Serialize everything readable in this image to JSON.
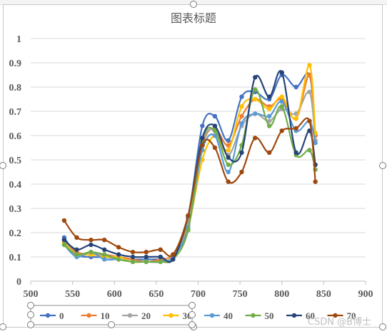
{
  "chart_data": {
    "type": "line",
    "title": "图表标题",
    "xlabel": "",
    "ylabel": "",
    "xlim": [
      500,
      900
    ],
    "ylim": [
      0,
      1
    ],
    "x_ticks": [
      "500",
      "550",
      "600",
      "650",
      "700",
      "750",
      "800",
      "850",
      "900"
    ],
    "y_ticks": [
      "0",
      "0.1",
      "0.2",
      "0.3",
      "0.4",
      "0.5",
      "0.6",
      "0.7",
      "0.8",
      "0.9",
      "1"
    ],
    "grid": "horizontal",
    "legend_position": "bottom",
    "x": [
      540,
      555,
      572,
      588,
      605,
      622,
      638,
      655,
      670,
      688,
      705,
      720,
      736,
      752,
      768,
      785,
      800,
      817,
      833,
      840
    ],
    "series": [
      {
        "name": "0",
        "color": "#4472c4",
        "values": [
          0.18,
          0.11,
          0.1,
          0.1,
          0.1,
          0.09,
          0.09,
          0.09,
          0.09,
          0.26,
          0.64,
          0.68,
          0.58,
          0.76,
          0.78,
          0.75,
          0.85,
          0.8,
          0.85,
          0.6
        ]
      },
      {
        "name": "10",
        "color": "#ed7d31",
        "values": [
          0.16,
          0.12,
          0.11,
          0.11,
          0.1,
          0.09,
          0.08,
          0.09,
          0.11,
          0.24,
          0.56,
          0.63,
          0.56,
          0.68,
          0.75,
          0.72,
          0.75,
          0.67,
          0.85,
          0.6
        ]
      },
      {
        "name": "20",
        "color": "#a5a5a5",
        "values": [
          0.17,
          0.11,
          0.12,
          0.1,
          0.09,
          0.08,
          0.08,
          0.08,
          0.1,
          0.23,
          0.57,
          0.62,
          0.52,
          0.64,
          0.69,
          0.66,
          0.71,
          0.69,
          0.78,
          0.58
        ]
      },
      {
        "name": "30",
        "color": "#ffc000",
        "values": [
          0.16,
          0.11,
          0.11,
          0.1,
          0.1,
          0.08,
          0.08,
          0.08,
          0.1,
          0.22,
          0.5,
          0.6,
          0.54,
          0.72,
          0.75,
          0.71,
          0.76,
          0.67,
          0.89,
          0.61
        ]
      },
      {
        "name": "40",
        "color": "#5b9bd5",
        "values": [
          0.15,
          0.1,
          0.12,
          0.09,
          0.09,
          0.08,
          0.08,
          0.08,
          0.1,
          0.22,
          0.54,
          0.6,
          0.45,
          0.65,
          0.69,
          0.68,
          0.74,
          0.62,
          0.66,
          0.57
        ]
      },
      {
        "name": "50",
        "color": "#70ad47",
        "values": [
          0.15,
          0.11,
          0.12,
          0.11,
          0.09,
          0.08,
          0.08,
          0.08,
          0.09,
          0.21,
          0.58,
          0.62,
          0.48,
          0.56,
          0.79,
          0.64,
          0.72,
          0.52,
          0.54,
          0.46
        ]
      },
      {
        "name": "60",
        "color": "#264478",
        "values": [
          0.17,
          0.13,
          0.15,
          0.13,
          0.11,
          0.1,
          0.1,
          0.1,
          0.09,
          0.27,
          0.59,
          0.64,
          0.51,
          0.53,
          0.84,
          0.76,
          0.86,
          0.53,
          0.62,
          0.48
        ]
      },
      {
        "name": "70",
        "color": "#9e480e",
        "values": [
          0.25,
          0.18,
          0.17,
          0.17,
          0.14,
          0.12,
          0.12,
          0.13,
          0.11,
          0.27,
          0.56,
          0.55,
          0.41,
          0.45,
          0.59,
          0.53,
          0.62,
          0.63,
          0.66,
          0.41
        ]
      }
    ]
  },
  "watermark": "CSDN @B博士"
}
